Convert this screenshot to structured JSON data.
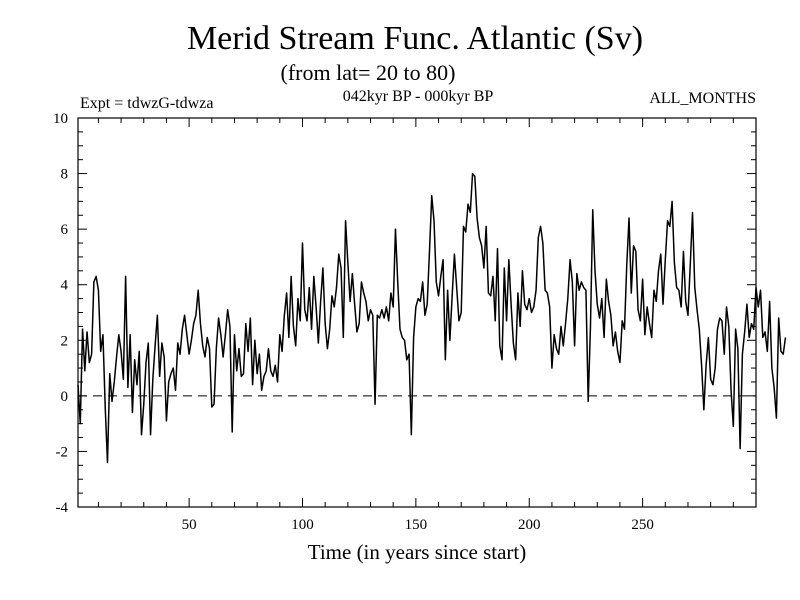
{
  "chart_data": {
    "type": "line",
    "title": "Merid Stream Func. Atlantic (Sv)",
    "subtitle": "(from lat= 20 to 80)",
    "left_label": "Expt = tdwzG-tdwza",
    "center_label": "042kyr BP - 000kyr BP",
    "right_label": "ALL_MONTHS",
    "xlabel": "Time (in years since start)",
    "ylabel": "",
    "xlim": [
      1,
      300
    ],
    "ylim": [
      -4,
      10
    ],
    "x_ticks": [
      50,
      100,
      150,
      200,
      250
    ],
    "y_ticks": [
      -4,
      -2,
      0,
      2,
      4,
      6,
      8,
      10
    ],
    "reference_line": {
      "y": 0,
      "style": "dashed"
    },
    "series": [
      {
        "name": "Merid Stream Func. Atlantic",
        "x_start": 1,
        "x_step": 1,
        "values": [
          0.4,
          -1.0,
          2.4,
          0.9,
          2.3,
          1.2,
          1.5,
          4.1,
          4.3,
          3.8,
          1.6,
          2.2,
          -0.4,
          -2.4,
          0.8,
          -0.2,
          0.5,
          1.4,
          2.2,
          1.6,
          0.6,
          4.3,
          0.3,
          2.2,
          -0.6,
          1.3,
          0.4,
          1.6,
          -1.4,
          -0.3,
          1.2,
          1.9,
          -1.4,
          0.6,
          1.8,
          2.9,
          0.7,
          1.9,
          1.4,
          -0.9,
          0.5,
          0.8,
          1.0,
          0.2,
          1.9,
          1.5,
          2.4,
          2.9,
          2.2,
          1.5,
          2.0,
          2.6,
          2.9,
          3.8,
          2.6,
          1.8,
          1.4,
          2.1,
          1.7,
          -0.4,
          -0.3,
          1.7,
          2.8,
          2.2,
          1.4,
          2.2,
          3.1,
          2.5,
          -1.3,
          2.2,
          0.9,
          1.7,
          0.7,
          0.8,
          2.6,
          1.6,
          2.8,
          0.4,
          2.0,
          0.8,
          1.5,
          0.2,
          0.7,
          0.9,
          1.7,
          0.9,
          0.7,
          1.1,
          0.5,
          2.2,
          1.6,
          2.9,
          3.7,
          2.1,
          4.3,
          2.5,
          1.8,
          3.5,
          2.7,
          5.5,
          3.1,
          2.7,
          3.9,
          2.4,
          4.3,
          3.2,
          1.9,
          3.4,
          4.6,
          2.6,
          1.7,
          2.4,
          3.6,
          3.2,
          3.9,
          5.1,
          4.6,
          2.1,
          6.3,
          4.8,
          3.4,
          4.4,
          3.3,
          2.3,
          2.6,
          4.1,
          3.7,
          3.4,
          2.7,
          3.1,
          2.9,
          -0.3,
          2.9,
          2.8,
          3.1,
          2.8,
          3.2,
          2.7,
          3.7,
          3.2,
          6.0,
          4.1,
          2.4,
          2.1,
          2.0,
          1.3,
          1.5,
          -1.4,
          2.1,
          3.2,
          3.5,
          3.4,
          4.1,
          2.9,
          3.3,
          5.2,
          7.2,
          6.3,
          4.1,
          3.6,
          4.3,
          4.9,
          1.3,
          3.8,
          2.0,
          3.6,
          5.1,
          3.9,
          2.7,
          3.0,
          6.1,
          5.9,
          6.9,
          6.6,
          8.0,
          7.9,
          6.4,
          5.7,
          5.4,
          4.6,
          6.1,
          3.7,
          3.6,
          4.3,
          2.7,
          5.3,
          1.8,
          1.3,
          4.6,
          2.7,
          4.9,
          3.3,
          1.9,
          1.3,
          3.7,
          2.5,
          4.5,
          3.3,
          3.1,
          3.5,
          3.0,
          3.2,
          3.8,
          5.7,
          6.1,
          5.5,
          3.8,
          3.7,
          3.2,
          1.0,
          2.2,
          1.7,
          1.5,
          2.5,
          1.8,
          2.6,
          3.5,
          4.9,
          4.1,
          1.8,
          4.4,
          3.8,
          4.1,
          3.9,
          3.8,
          -0.2,
          2.5,
          6.7,
          4.5,
          3.3,
          2.8,
          3.5,
          2.1,
          4.2,
          3.4,
          2.9,
          1.8,
          2.3,
          1.6,
          1.2,
          2.7,
          2.4,
          4.7,
          6.4,
          3.7,
          5.4,
          5.2,
          3.1,
          2.7,
          4.2,
          2.2,
          3.2,
          2.6,
          2.1,
          3.8,
          3.4,
          4.5,
          5.1,
          3.3,
          4.9,
          6.3,
          6.1,
          7.0,
          4.8,
          3.9,
          3.8,
          3.2,
          5.2,
          3.4,
          2.9,
          4.7,
          6.6,
          3.9,
          3.1,
          2.4,
          1.1,
          -0.5,
          1.1,
          2.1,
          0.6,
          0.4,
          1.0,
          2.4,
          2.8,
          2.7,
          1.5,
          3.2,
          2.5,
          0.2,
          -1.1,
          2.4,
          1.7,
          -1.9,
          1.5,
          2.3,
          3.3,
          2.1,
          2.6,
          2.4,
          3.9,
          3.2,
          3.8,
          2.1,
          2.3,
          1.6,
          3.4,
          1.0,
          0.3,
          -0.8,
          2.8,
          1.6,
          1.5,
          2.1
        ]
      }
    ]
  }
}
